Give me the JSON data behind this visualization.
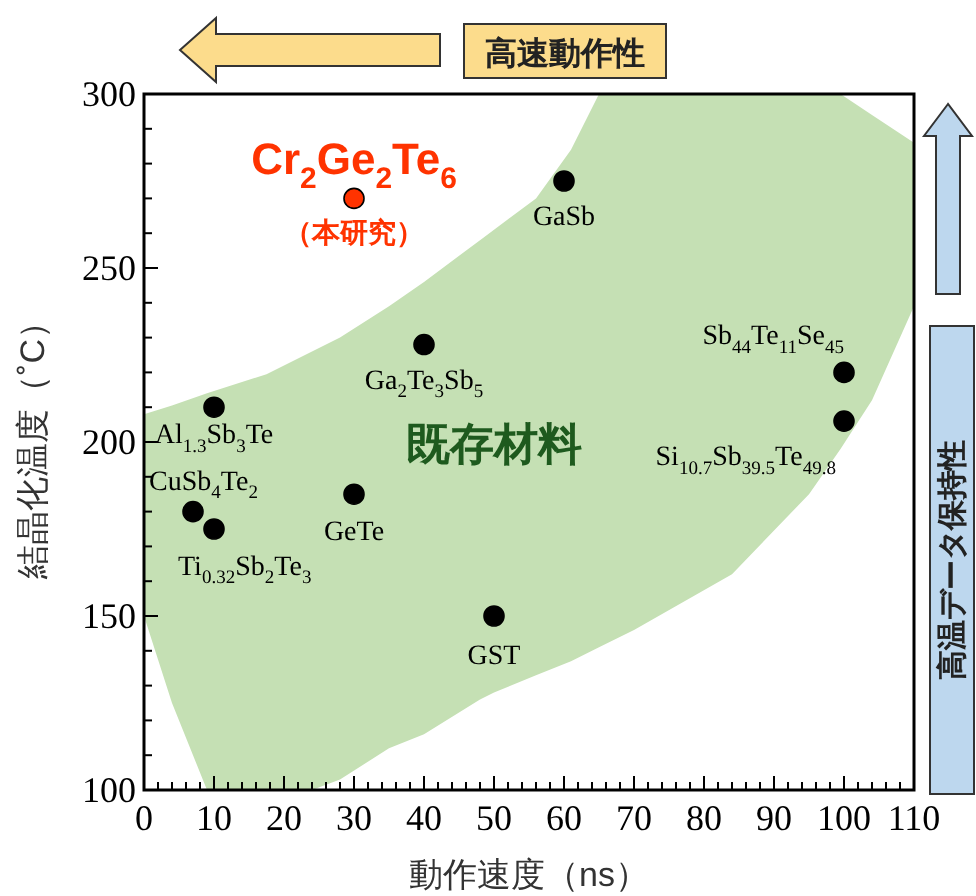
{
  "chart_data": {
    "type": "scatter",
    "xlabel": "動作速度（ns）",
    "ylabel": "結晶化温度（˚C）",
    "xlim": [
      0,
      110
    ],
    "ylim": [
      100,
      300
    ],
    "xticks": [
      0,
      {
        "value": 2,
        "label": null
      },
      {
        "value": 4,
        "label": null
      },
      {
        "value": 6,
        "label": null
      },
      {
        "value": 8,
        "label": null
      },
      10,
      {
        "value": 12,
        "label": null
      },
      {
        "value": 14,
        "label": null
      },
      {
        "value": 16,
        "label": null
      },
      {
        "value": 18,
        "label": null
      },
      20,
      {
        "value": 22,
        "label": null
      },
      {
        "value": 24,
        "label": null
      },
      {
        "value": 26,
        "label": null
      },
      {
        "value": 28,
        "label": null
      },
      30,
      {
        "value": 32,
        "label": null
      },
      {
        "value": 34,
        "label": null
      },
      {
        "value": 36,
        "label": null
      },
      {
        "value": 38,
        "label": null
      },
      40,
      {
        "value": 42,
        "label": null
      },
      {
        "value": 44,
        "label": null
      },
      {
        "value": 46,
        "label": null
      },
      {
        "value": 48,
        "label": null
      },
      50,
      {
        "value": 52,
        "label": null
      },
      {
        "value": 54,
        "label": null
      },
      {
        "value": 56,
        "label": null
      },
      {
        "value": 58,
        "label": null
      },
      60,
      {
        "value": 62,
        "label": null
      },
      {
        "value": 64,
        "label": null
      },
      {
        "value": 66,
        "label": null
      },
      {
        "value": 68,
        "label": null
      },
      70,
      {
        "value": 72,
        "label": null
      },
      {
        "value": 74,
        "label": null
      },
      {
        "value": 76,
        "label": null
      },
      {
        "value": 78,
        "label": null
      },
      80,
      {
        "value": 82,
        "label": null
      },
      {
        "value": 84,
        "label": null
      },
      {
        "value": 86,
        "label": null
      },
      {
        "value": 88,
        "label": null
      },
      90,
      {
        "value": 92,
        "label": null
      },
      {
        "value": 94,
        "label": null
      },
      {
        "value": 96,
        "label": null
      },
      {
        "value": 98,
        "label": null
      },
      100,
      {
        "value": 102,
        "label": null
      },
      {
        "value": 104,
        "label": null
      },
      {
        "value": 106,
        "label": null
      },
      {
        "value": 108,
        "label": null
      },
      110
    ],
    "yticks": [
      100,
      {
        "value": 110,
        "label": null
      },
      {
        "value": 120,
        "label": null
      },
      {
        "value": 130,
        "label": null
      },
      {
        "value": 140,
        "label": null
      },
      150,
      {
        "value": 160,
        "label": null
      },
      {
        "value": 170,
        "label": null
      },
      {
        "value": 180,
        "label": null
      },
      {
        "value": 190,
        "label": null
      },
      200,
      {
        "value": 210,
        "label": null
      },
      {
        "value": 220,
        "label": null
      },
      {
        "value": 230,
        "label": null
      },
      {
        "value": 240,
        "label": null
      },
      250,
      {
        "value": 260,
        "label": null
      },
      {
        "value": 270,
        "label": null
      },
      {
        "value": 280,
        "label": null
      },
      {
        "value": 290,
        "label": null
      },
      300
    ],
    "marker": "circle",
    "legend": false,
    "grid": false,
    "series": [
      {
        "type": "area",
        "color": "#c5e0b4",
        "x": [
          0,
          4,
          9,
          17.5,
          24,
          28,
          35,
          40,
          48,
          50,
          56,
          61,
          65,
          70,
          84,
          95,
          99.5,
          104,
          110
        ],
        "values": [
          null,
          null,
          null,
          null,
          null,
          null,
          null,
          null,
          null,
          null,
          null,
          null,
          null,
          null,
          null,
          null,
          null,
          null,
          null
        ],
        "upper": [
          208,
          210.5,
          214,
          219.5,
          226,
          230,
          239,
          246,
          258,
          261,
          270,
          284,
          300,
          300,
          300,
          300,
          300,
          294,
          286
        ],
        "lower": [
          150,
          125,
          100,
          100,
          100,
          103,
          112,
          116,
          126,
          128,
          133,
          137,
          141,
          146,
          162,
          185,
          198,
          212,
          239
        ]
      },
      {
        "name": "Cr$_{2}$Ge$_{2}$Te$_{6}$",
        "color": "#ff3300",
        "x": [
          30
        ],
        "values": [
          270
        ]
      },
      {
        "color": "#000000",
        "x": [
          60,
          40,
          100,
          100,
          10,
          7,
          10,
          30,
          50
        ],
        "values": [
          275,
          228,
          220,
          206,
          210,
          180,
          175,
          185,
          150
        ]
      }
    ],
    "annotations": [
      {
        "text": "（本研究）",
        "x": 30,
        "y": 270
      },
      {
        "text": "GaSb",
        "x": 60,
        "y": 275
      },
      {
        "text": "Ga$_{2}$Te$_{3}$Sb$_{5}$",
        "x": 40,
        "y": 228
      },
      {
        "text": "Sb$_{44}$Te$_{11}$Se$_{45}$",
        "x": 100,
        "y": 220
      },
      {
        "text": "Si$_{10.7}$Sb$_{39.5}$Te$_{49.8}$",
        "x": 100,
        "y": 206
      },
      {
        "text": "Al$_{1.3}$Sb$_{3}$Te",
        "x": 10,
        "y": 210
      },
      {
        "text": "CuSb$_{4}$Te$_{2}$",
        "x": 7,
        "y": 180
      },
      {
        "text": "Ti$_{0.32}$Sb$_{2}$Te$_{3}$",
        "x": 10,
        "y": 175
      },
      {
        "text": "GeTe",
        "x": 30,
        "y": 185
      },
      {
        "text": "GST",
        "x": 50,
        "y": 150
      },
      "既存材料",
      "高速動作性",
      "高温データ保持性"
    ]
  }
}
